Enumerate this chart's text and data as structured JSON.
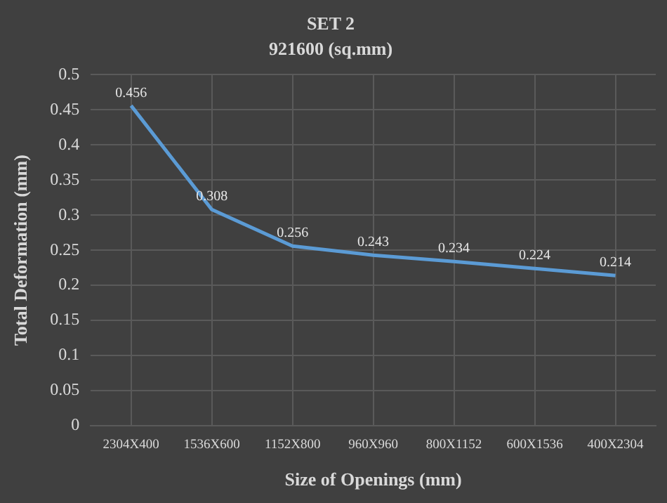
{
  "chart_data": {
    "type": "line",
    "title": "SET 2",
    "subtitle": "921600 (sq.mm)",
    "xlabel": "Size of Openings (mm)",
    "ylabel": "Total Deformation (mm)",
    "categories": [
      "2304X400",
      "1536X600",
      "1152X800",
      "960X960",
      "800X1152",
      "600X1536",
      "400X2304"
    ],
    "series": [
      {
        "color": "#5b9bd5",
        "values": [
          0.456,
          0.308,
          0.256,
          0.243,
          0.234,
          0.224,
          0.214
        ]
      }
    ],
    "ylim": [
      0,
      0.5
    ],
    "yticks": [
      0,
      0.05,
      0.1,
      0.15,
      0.2,
      0.25,
      0.3,
      0.35,
      0.4,
      0.45,
      0.5
    ],
    "grid": true,
    "legend": false,
    "marker": "none",
    "line_style": "solid",
    "data_labels": true
  }
}
